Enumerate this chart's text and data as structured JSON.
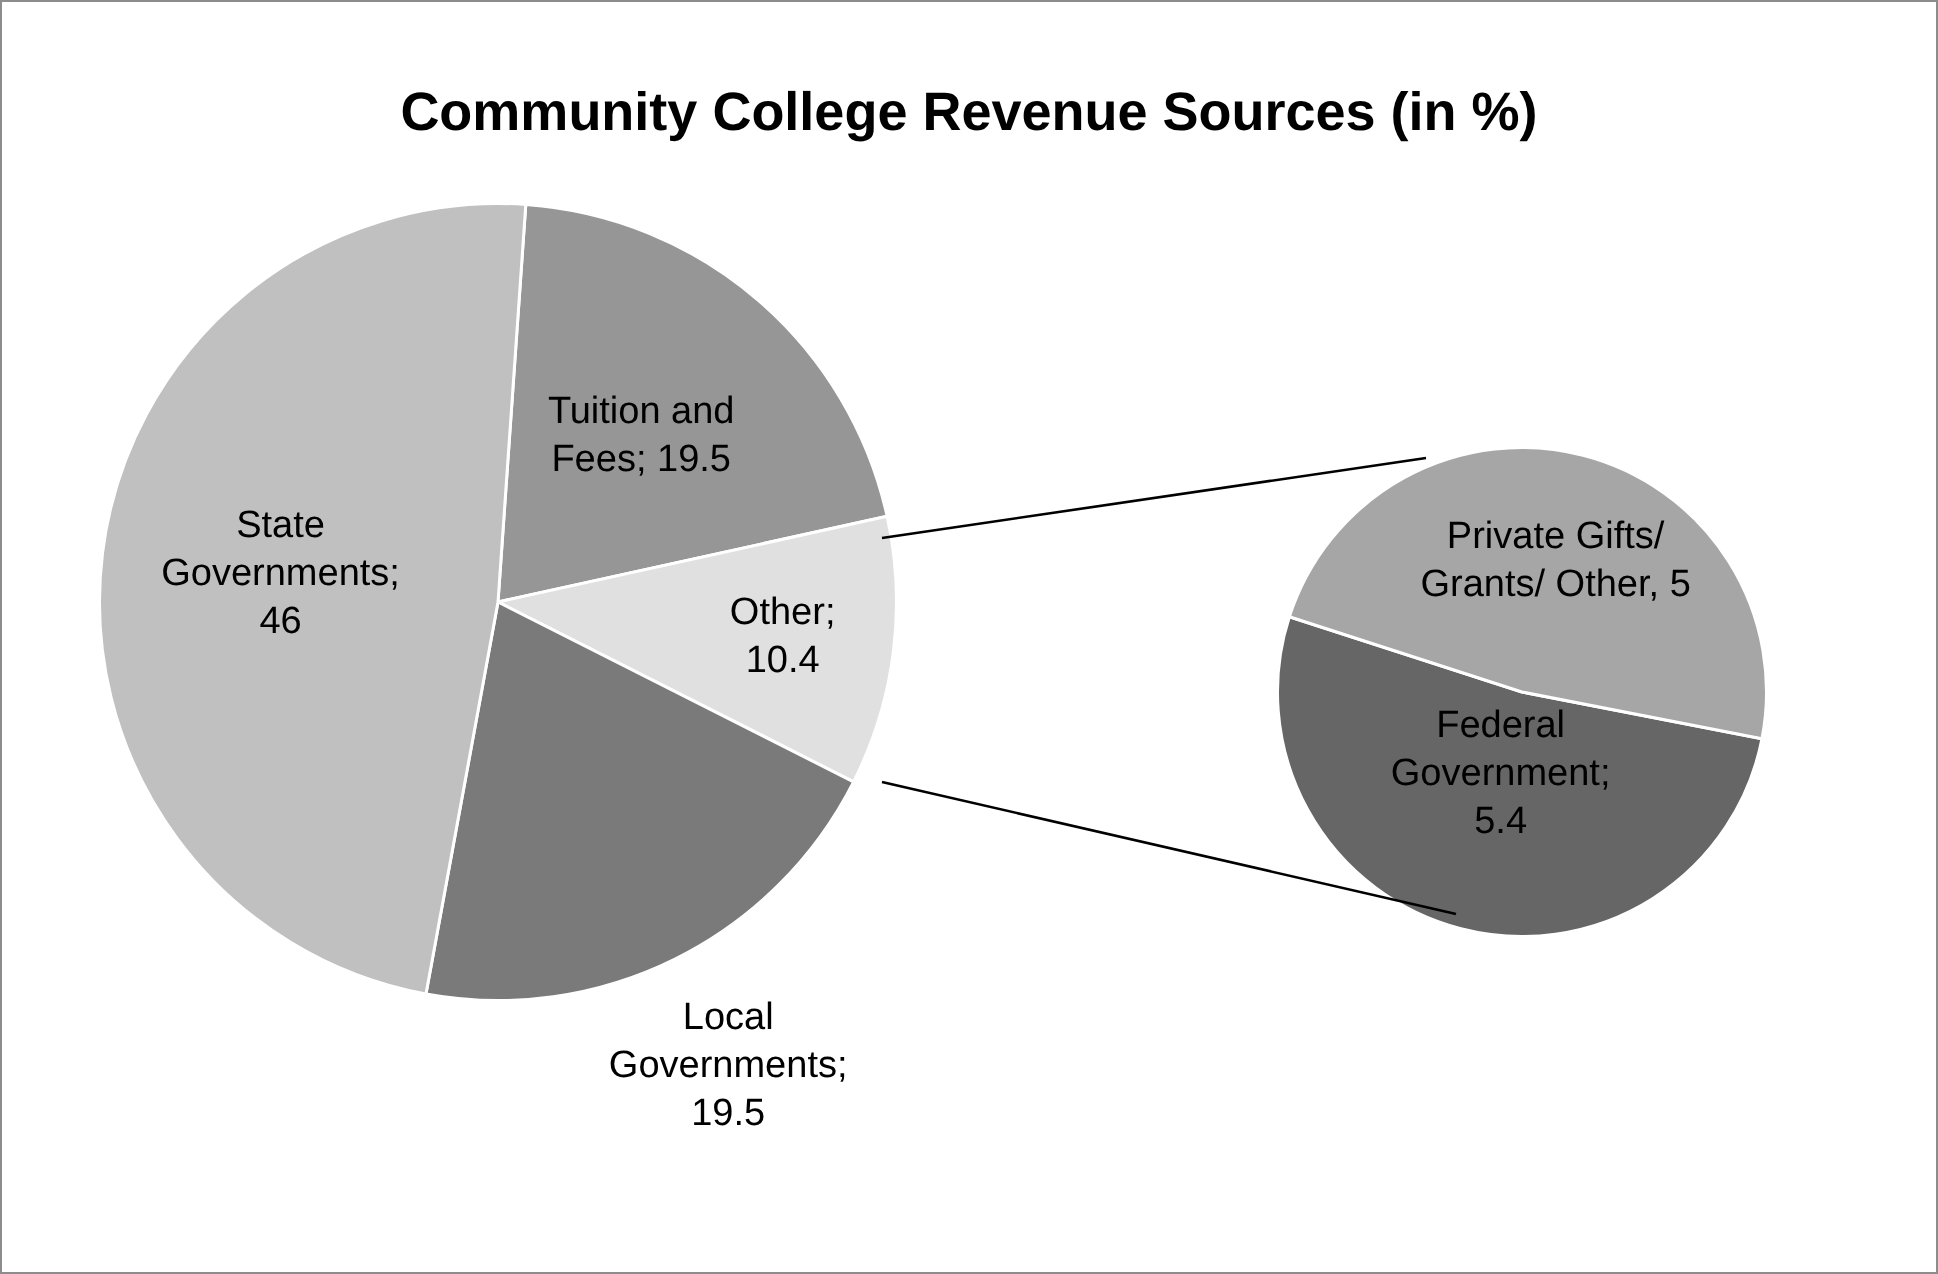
{
  "chart_data": [
    {
      "type": "pie",
      "title": "Community College Revenue Sources (in %)",
      "categories": [
        "Tuition and Fees",
        "Other",
        "Local Governments",
        "State Governments"
      ],
      "values": [
        19.5,
        10.4,
        19.5,
        46
      ],
      "colors": [
        "#969696",
        "#e0e0e0",
        "#7a7a7a",
        "#c0c0c0"
      ],
      "value_labels": [
        "; 19.5",
        "; 10.4",
        "; 19.5",
        "; 46"
      ],
      "legend": false
    },
    {
      "type": "pie",
      "categories": [
        "Federal Government",
        "Private Gifts/ Grants/ Other"
      ],
      "values": [
        5.4,
        5
      ],
      "colors": [
        "#666666",
        "#a6a6a6"
      ],
      "value_labels": [
        "; 5.4",
        ", 5"
      ],
      "legend": false
    }
  ]
}
